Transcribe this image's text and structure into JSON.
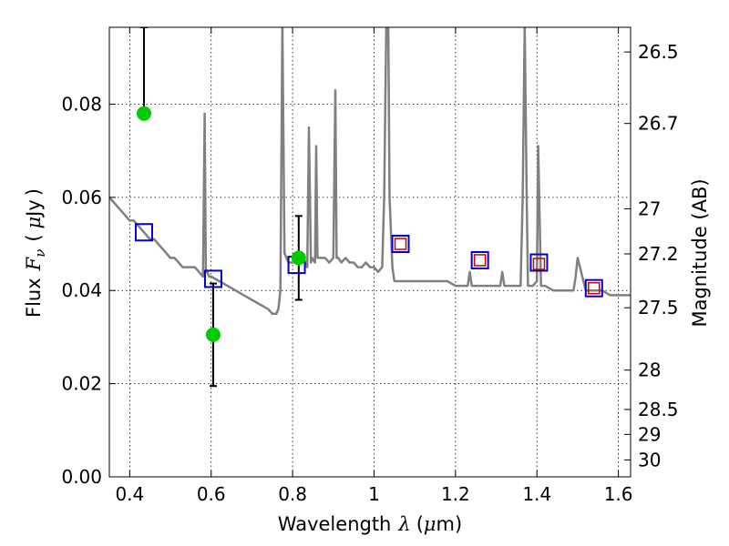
{
  "chart_data": {
    "type": "scatter",
    "xlabel_text": "Wavelength",
    "xlabel_symbol": "λ",
    "xlabel_unit_open": "(",
    "xlabel_unit_mu": "μ",
    "xlabel_unit_rest": "m)",
    "ylabel_text": "Flux",
    "ylabel_symbol": "F",
    "ylabel_sub": "ν",
    "ylabel_unit_open": "(",
    "ylabel_unit_mu": "μ",
    "ylabel_unit_rest": "Jy",
    "ylabel_unit_close": ")",
    "y2label": "Magnitude (AB)",
    "xlim": [
      0.35,
      1.63
    ],
    "ylim": [
      0.0,
      0.0965
    ],
    "grid": true,
    "x_ticks": [
      0.4,
      0.6,
      0.8,
      1.0,
      1.2,
      1.4,
      1.6
    ],
    "x_tick_labels": [
      "0.4",
      "0.6",
      "0.8",
      "1",
      "1.2",
      "1.4",
      "1.6"
    ],
    "y_ticks": [
      0.0,
      0.02,
      0.04,
      0.06,
      0.08
    ],
    "y_tick_labels": [
      "0.00",
      "0.02",
      "0.04",
      "0.06",
      "0.08"
    ],
    "mag_ticks": [
      26.5,
      26.7,
      27,
      27.2,
      27.5,
      28,
      28.5,
      29,
      30
    ],
    "mag_tick_labels": [
      "26.5",
      "26.7",
      "27",
      "27.2",
      "27.5",
      "28",
      "28.5",
      "29",
      "30"
    ],
    "colors": {
      "model": "#808080",
      "observed": "#00cc00",
      "model_photometry": "#0000cc",
      "template_photometry": "#cc0000",
      "errorbar": "#000000"
    },
    "model_spectrum": {
      "x": [
        0.35,
        0.36,
        0.37,
        0.38,
        0.39,
        0.4,
        0.41,
        0.42,
        0.43,
        0.44,
        0.45,
        0.46,
        0.47,
        0.48,
        0.49,
        0.5,
        0.51,
        0.52,
        0.53,
        0.54,
        0.55,
        0.56,
        0.57,
        0.58,
        0.584,
        0.587,
        0.59,
        0.595,
        0.6,
        0.62,
        0.64,
        0.66,
        0.68,
        0.7,
        0.72,
        0.74,
        0.75,
        0.76,
        0.765,
        0.77,
        0.775,
        0.78,
        0.79,
        0.8,
        0.81,
        0.82,
        0.83,
        0.836,
        0.84,
        0.845,
        0.848,
        0.855,
        0.858,
        0.861,
        0.87,
        0.88,
        0.89,
        0.9,
        0.905,
        0.908,
        0.912,
        0.92,
        0.93,
        0.94,
        0.95,
        0.96,
        0.97,
        0.98,
        0.99,
        1.0,
        1.01,
        1.02,
        1.025,
        1.03,
        1.035,
        1.038,
        1.045,
        1.05,
        1.06,
        1.08,
        1.1,
        1.12,
        1.14,
        1.16,
        1.18,
        1.2,
        1.22,
        1.23,
        1.235,
        1.24,
        1.25,
        1.28,
        1.3,
        1.31,
        1.315,
        1.32,
        1.33,
        1.35,
        1.36,
        1.365,
        1.37,
        1.375,
        1.378,
        1.385,
        1.39,
        1.4,
        1.403,
        1.41,
        1.42,
        1.44,
        1.46,
        1.48,
        1.49,
        1.495,
        1.5,
        1.52,
        1.54,
        1.56,
        1.58,
        1.6,
        1.63
      ],
      "y": [
        0.06,
        0.059,
        0.058,
        0.057,
        0.056,
        0.055,
        0.055,
        0.054,
        0.053,
        0.052,
        0.051,
        0.051,
        0.05,
        0.049,
        0.048,
        0.047,
        0.047,
        0.046,
        0.045,
        0.045,
        0.045,
        0.045,
        0.044,
        0.043,
        0.078,
        0.044,
        0.044,
        0.043,
        0.043,
        0.042,
        0.041,
        0.04,
        0.039,
        0.038,
        0.037,
        0.036,
        0.035,
        0.035,
        0.036,
        0.04,
        0.097,
        0.048,
        0.046,
        0.046,
        0.047,
        0.048,
        0.046,
        0.045,
        0.075,
        0.046,
        0.047,
        0.046,
        0.071,
        0.047,
        0.047,
        0.047,
        0.046,
        0.047,
        0.083,
        0.047,
        0.047,
        0.046,
        0.047,
        0.046,
        0.046,
        0.045,
        0.045,
        0.046,
        0.045,
        0.045,
        0.044,
        0.045,
        0.06,
        0.097,
        0.097,
        0.06,
        0.045,
        0.042,
        0.042,
        0.042,
        0.042,
        0.042,
        0.042,
        0.042,
        0.042,
        0.041,
        0.041,
        0.041,
        0.044,
        0.041,
        0.041,
        0.041,
        0.041,
        0.041,
        0.044,
        0.041,
        0.041,
        0.041,
        0.041,
        0.06,
        0.097,
        0.06,
        0.041,
        0.041,
        0.041,
        0.042,
        0.071,
        0.041,
        0.041,
        0.04,
        0.04,
        0.04,
        0.04,
        0.043,
        0.047,
        0.04,
        0.04,
        0.04,
        0.039,
        0.039,
        0.039
      ]
    },
    "observed": [
      {
        "x": 0.435,
        "y": 0.078,
        "err_low": 0.078,
        "err_high": 0.0965
      },
      {
        "x": 0.605,
        "y": 0.0305,
        "err_low": 0.0195,
        "err_high": 0.0415
      },
      {
        "x": 0.815,
        "y": 0.047,
        "err_low": 0.038,
        "err_high": 0.056
      }
    ],
    "model_photometry": {
      "x": [
        0.435,
        0.605,
        0.81,
        1.065,
        1.26,
        1.405,
        1.54
      ],
      "y": [
        0.0525,
        0.0425,
        0.0455,
        0.05,
        0.0465,
        0.046,
        0.0405
      ]
    },
    "template_photometry": {
      "x": [
        1.065,
        1.26,
        1.405,
        1.54
      ],
      "y": [
        0.05,
        0.0465,
        0.0457,
        0.0405
      ]
    }
  }
}
